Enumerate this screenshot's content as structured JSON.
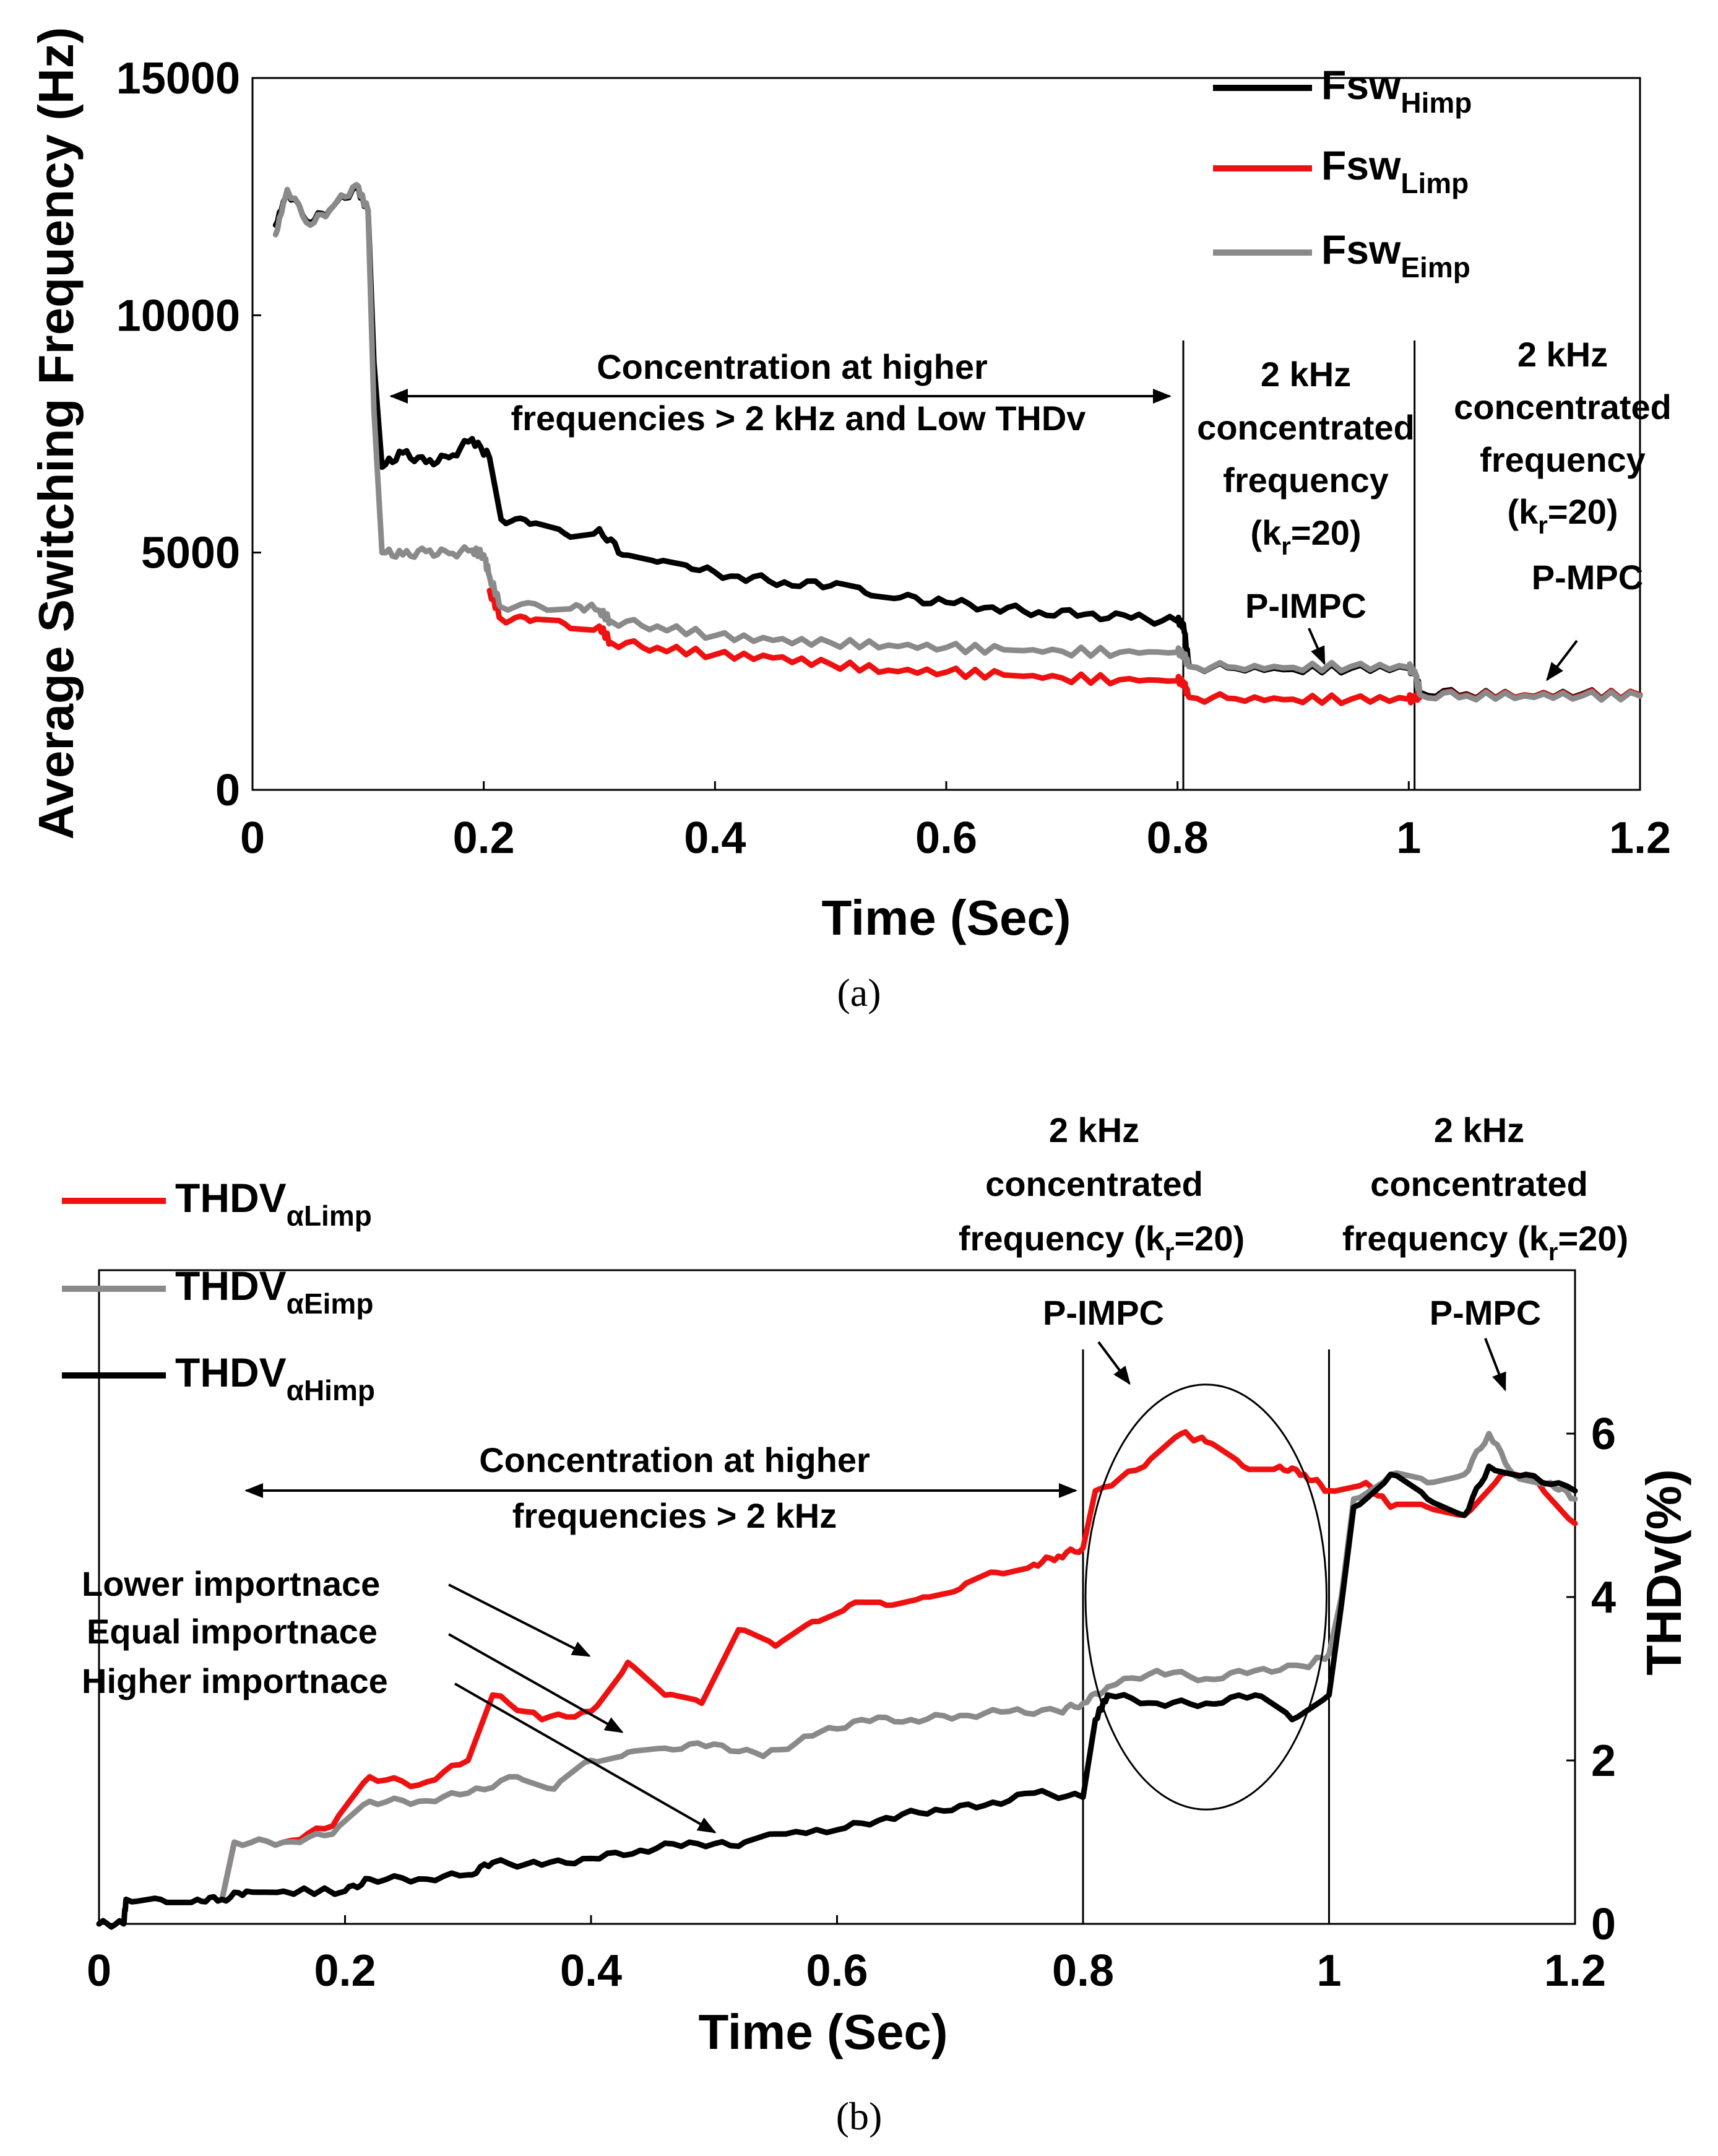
{
  "chart_data": [
    {
      "type": "line",
      "caption": "(a)",
      "xlabel": "Time (Sec)",
      "ylabel": "Average Switching Frequency (Hz)",
      "xlim": [
        0,
        1.2
      ],
      "ylim": [
        0,
        15000
      ],
      "xticks": [
        "0",
        "0.2",
        "0.4",
        "0.6",
        "0.8",
        "1",
        "1.2"
      ],
      "yticks": [
        "0",
        "5000",
        "10000",
        "15000"
      ],
      "legend_position": "top-right",
      "vlines": [
        0.805,
        1.005
      ],
      "series": [
        {
          "name_main": "Fsw",
          "name_sub": "Himp",
          "color": "#000000",
          "points": [
            [
              0.02,
              11900
            ],
            [
              0.03,
              12600
            ],
            [
              0.05,
              11950
            ],
            [
              0.07,
              12300
            ],
            [
              0.09,
              12700
            ],
            [
              0.1,
              12200
            ],
            [
              0.105,
              9000
            ],
            [
              0.112,
              6800
            ],
            [
              0.13,
              7100
            ],
            [
              0.15,
              6900
            ],
            [
              0.17,
              7000
            ],
            [
              0.19,
              7400
            ],
            [
              0.205,
              7000
            ],
            [
              0.215,
              5700
            ],
            [
              0.24,
              5600
            ],
            [
              0.27,
              5400
            ],
            [
              0.3,
              5500
            ],
            [
              0.32,
              4950
            ],
            [
              0.35,
              4800
            ],
            [
              0.38,
              4650
            ],
            [
              0.42,
              4500
            ],
            [
              0.46,
              4380
            ],
            [
              0.5,
              4300
            ],
            [
              0.53,
              4150
            ],
            [
              0.56,
              4050
            ],
            [
              0.6,
              3950
            ],
            [
              0.64,
              3850
            ],
            [
              0.68,
              3750
            ],
            [
              0.72,
              3700
            ],
            [
              0.76,
              3620
            ],
            [
              0.8,
              3550
            ],
            [
              0.805,
              3500
            ],
            [
              0.81,
              2600
            ],
            [
              0.85,
              2560
            ],
            [
              0.9,
              2540
            ],
            [
              0.95,
              2560
            ],
            [
              1.0,
              2560
            ],
            [
              1.005,
              2500
            ],
            [
              1.01,
              2050
            ],
            [
              1.05,
              2020
            ],
            [
              1.1,
              2000
            ],
            [
              1.15,
              2020
            ],
            [
              1.2,
              2000
            ]
          ]
        },
        {
          "name_main": "Fsw",
          "name_sub": "Limp",
          "color": "#ee1111",
          "points": [
            [
              0.205,
              4200
            ],
            [
              0.215,
              3600
            ],
            [
              0.24,
              3550
            ],
            [
              0.27,
              3500
            ],
            [
              0.3,
              3450
            ],
            [
              0.31,
              3100
            ],
            [
              0.35,
              3000
            ],
            [
              0.4,
              2850
            ],
            [
              0.45,
              2780
            ],
            [
              0.5,
              2650
            ],
            [
              0.55,
              2520
            ],
            [
              0.6,
              2480
            ],
            [
              0.65,
              2420
            ],
            [
              0.7,
              2360
            ],
            [
              0.75,
              2320
            ],
            [
              0.8,
              2300
            ],
            [
              0.805,
              2280
            ],
            [
              0.81,
              1950
            ],
            [
              0.85,
              1920
            ],
            [
              0.9,
              1910
            ],
            [
              0.95,
              1910
            ],
            [
              1.0,
              1910
            ],
            [
              1.005,
              1950
            ],
            [
              1.01,
              2000
            ],
            [
              1.05,
              2000
            ],
            [
              1.1,
              2000
            ],
            [
              1.15,
              2000
            ],
            [
              1.2,
              2000
            ]
          ]
        },
        {
          "name_main": "Fsw",
          "name_sub": "Eimp",
          "color": "#8a8a8a",
          "points": [
            [
              0.02,
              11700
            ],
            [
              0.03,
              12650
            ],
            [
              0.05,
              11900
            ],
            [
              0.07,
              12300
            ],
            [
              0.09,
              12750
            ],
            [
              0.1,
              12200
            ],
            [
              0.105,
              8000
            ],
            [
              0.112,
              5000
            ],
            [
              0.13,
              4950
            ],
            [
              0.15,
              5020
            ],
            [
              0.17,
              4980
            ],
            [
              0.19,
              5050
            ],
            [
              0.2,
              4950
            ],
            [
              0.205,
              4500
            ],
            [
              0.215,
              3850
            ],
            [
              0.25,
              3850
            ],
            [
              0.28,
              3900
            ],
            [
              0.3,
              3780
            ],
            [
              0.31,
              3550
            ],
            [
              0.35,
              3450
            ],
            [
              0.4,
              3250
            ],
            [
              0.45,
              3150
            ],
            [
              0.5,
              3100
            ],
            [
              0.55,
              3050
            ],
            [
              0.6,
              3000
            ],
            [
              0.65,
              2950
            ],
            [
              0.7,
              2920
            ],
            [
              0.75,
              2900
            ],
            [
              0.8,
              2900
            ],
            [
              0.805,
              2880
            ],
            [
              0.81,
              2600
            ],
            [
              0.85,
              2580
            ],
            [
              0.9,
              2580
            ],
            [
              0.95,
              2600
            ],
            [
              1.0,
              2580
            ],
            [
              1.005,
              2500
            ],
            [
              1.01,
              2000
            ],
            [
              1.05,
              1980
            ],
            [
              1.1,
              1980
            ],
            [
              1.15,
              1980
            ],
            [
              1.2,
              1980
            ]
          ]
        }
      ],
      "annotations": {
        "concentration": [
          "Concentration at higher",
          "frequencies > 2 kHz and Low THDv"
        ],
        "first_window": {
          "lines": [
            "2 kHz",
            "concentrated",
            "frequency"
          ],
          "kr_open": "(k",
          "kr_sub": "r",
          "kr_close": "=20)",
          "label": "P-IMPC"
        },
        "second_window": {
          "lines": [
            "2 kHz",
            "concentrated",
            "frequency"
          ],
          "kr_open": "(k",
          "kr_sub": "r",
          "kr_close": "=20)",
          "label": "P-MPC"
        }
      }
    },
    {
      "type": "line",
      "caption": "(b)",
      "xlabel": "Time (Sec)",
      "ylabel": "THDv(%)",
      "xlim": [
        0,
        1.2
      ],
      "ylim": [
        0,
        8
      ],
      "xticks": [
        "0",
        "0.2",
        "0.4",
        "0.6",
        "0.8",
        "1",
        "1.2"
      ],
      "yticks": [
        "0",
        "2",
        "4",
        "6"
      ],
      "legend_position": "top-left",
      "vlines": [
        0.8,
        1.0
      ],
      "series": [
        {
          "name_main": "THDV",
          "name_sub": "αLimp",
          "color": "#ee1111",
          "points": [
            [
              0.1,
              0.3
            ],
            [
              0.11,
              1.0
            ],
            [
              0.15,
              1.0
            ],
            [
              0.19,
              1.2
            ],
            [
              0.22,
              1.8
            ],
            [
              0.26,
              1.7
            ],
            [
              0.3,
              2.0
            ],
            [
              0.32,
              2.8
            ],
            [
              0.36,
              2.5
            ],
            [
              0.4,
              2.6
            ],
            [
              0.43,
              3.2
            ],
            [
              0.46,
              2.8
            ],
            [
              0.49,
              2.7
            ],
            [
              0.52,
              3.6
            ],
            [
              0.55,
              3.4
            ],
            [
              0.58,
              3.7
            ],
            [
              0.61,
              3.9
            ],
            [
              0.64,
              3.9
            ],
            [
              0.67,
              4.0
            ],
            [
              0.7,
              4.1
            ],
            [
              0.73,
              4.3
            ],
            [
              0.76,
              4.4
            ],
            [
              0.78,
              4.5
            ],
            [
              0.8,
              4.6
            ],
            [
              0.81,
              5.3
            ],
            [
              0.85,
              5.6
            ],
            [
              0.88,
              6.0
            ],
            [
              0.9,
              5.9
            ],
            [
              0.93,
              5.6
            ],
            [
              0.96,
              5.6
            ],
            [
              0.98,
              5.5
            ],
            [
              1.0,
              5.3
            ],
            [
              1.03,
              5.4
            ],
            [
              1.05,
              5.1
            ],
            [
              1.08,
              5.1
            ],
            [
              1.11,
              5.0
            ],
            [
              1.14,
              5.5
            ],
            [
              1.17,
              5.4
            ],
            [
              1.2,
              4.9
            ]
          ]
        },
        {
          "name_main": "THDV",
          "name_sub": "αEimp",
          "color": "#8a8a8a",
          "points": [
            [
              0.1,
              0.3
            ],
            [
              0.11,
              1.0
            ],
            [
              0.15,
              1.0
            ],
            [
              0.19,
              1.1
            ],
            [
              0.22,
              1.5
            ],
            [
              0.26,
              1.5
            ],
            [
              0.3,
              1.6
            ],
            [
              0.34,
              1.8
            ],
            [
              0.37,
              1.65
            ],
            [
              0.4,
              2.0
            ],
            [
              0.43,
              2.1
            ],
            [
              0.46,
              2.15
            ],
            [
              0.5,
              2.2
            ],
            [
              0.54,
              2.05
            ],
            [
              0.58,
              2.3
            ],
            [
              0.62,
              2.5
            ],
            [
              0.66,
              2.5
            ],
            [
              0.7,
              2.55
            ],
            [
              0.74,
              2.6
            ],
            [
              0.78,
              2.6
            ],
            [
              0.8,
              2.7
            ],
            [
              0.82,
              2.9
            ],
            [
              0.86,
              3.1
            ],
            [
              0.9,
              3.0
            ],
            [
              0.94,
              3.1
            ],
            [
              0.98,
              3.15
            ],
            [
              1.0,
              3.3
            ],
            [
              1.01,
              4.0
            ],
            [
              1.02,
              5.2
            ],
            [
              1.05,
              5.5
            ],
            [
              1.08,
              5.4
            ],
            [
              1.11,
              5.5
            ],
            [
              1.13,
              6.0
            ],
            [
              1.15,
              5.5
            ],
            [
              1.18,
              5.4
            ],
            [
              1.2,
              5.2
            ]
          ]
        },
        {
          "name_main": "THDV",
          "name_sub": "αHimp",
          "color": "#000000",
          "points": [
            [
              0.0,
              0.0
            ],
            [
              0.02,
              0.0
            ],
            [
              0.022,
              0.3
            ],
            [
              0.05,
              0.3
            ],
            [
              0.08,
              0.3
            ],
            [
              0.1,
              0.3
            ],
            [
              0.12,
              0.4
            ],
            [
              0.15,
              0.4
            ],
            [
              0.2,
              0.4
            ],
            [
              0.22,
              0.55
            ],
            [
              0.26,
              0.55
            ],
            [
              0.3,
              0.6
            ],
            [
              0.32,
              0.75
            ],
            [
              0.36,
              0.72
            ],
            [
              0.4,
              0.8
            ],
            [
              0.44,
              0.9
            ],
            [
              0.48,
              1.0
            ],
            [
              0.52,
              0.95
            ],
            [
              0.55,
              1.1
            ],
            [
              0.6,
              1.15
            ],
            [
              0.64,
              1.3
            ],
            [
              0.68,
              1.4
            ],
            [
              0.72,
              1.45
            ],
            [
              0.76,
              1.6
            ],
            [
              0.8,
              1.55
            ],
            [
              0.81,
              2.5
            ],
            [
              0.82,
              2.8
            ],
            [
              0.86,
              2.7
            ],
            [
              0.9,
              2.7
            ],
            [
              0.94,
              2.8
            ],
            [
              0.97,
              2.5
            ],
            [
              1.0,
              2.8
            ],
            [
              1.01,
              3.9
            ],
            [
              1.02,
              5.1
            ],
            [
              1.05,
              5.5
            ],
            [
              1.08,
              5.2
            ],
            [
              1.11,
              5.0
            ],
            [
              1.13,
              5.6
            ],
            [
              1.16,
              5.5
            ],
            [
              1.2,
              5.3
            ]
          ]
        }
      ],
      "ellipse": {
        "cx": 0.9,
        "cy": 4.0,
        "rx": 0.098,
        "ry": 2.6
      },
      "annotations": {
        "concentration": [
          "Concentration at higher",
          "frequencies > 2 kHz"
        ],
        "importance": [
          "Lower importnace",
          "Equal importnace",
          "Higher importnace"
        ],
        "first_window": {
          "lines": [
            "2 kHz",
            "concentrated"
          ],
          "freq_open": "frequency (k",
          "kr_sub": "r",
          "kr_close": "=20)",
          "label": "P-IMPC"
        },
        "second_window": {
          "lines": [
            "2 kHz",
            "concentrated"
          ],
          "freq_open": "frequency (k",
          "kr_sub": "r",
          "kr_close": "=20)",
          "label": "P-MPC"
        }
      }
    }
  ]
}
